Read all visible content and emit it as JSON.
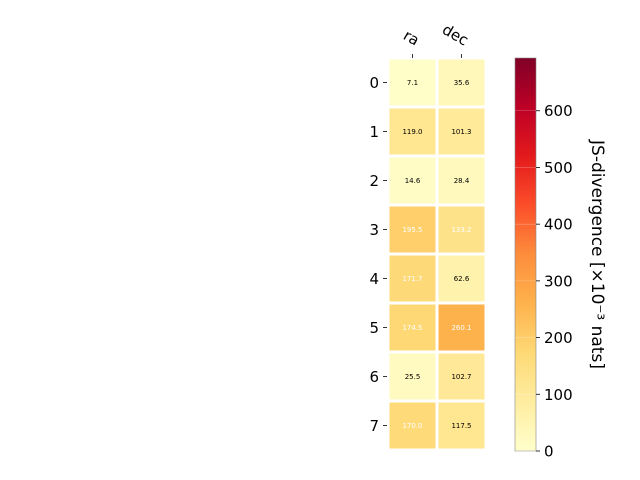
{
  "chart_data": {
    "type": "heatmap",
    "columns": [
      "ra",
      "dec"
    ],
    "rows": [
      "0",
      "1",
      "2",
      "3",
      "4",
      "5",
      "6",
      "7"
    ],
    "values": [
      [
        7.1,
        35.6
      ],
      [
        119.0,
        101.3
      ],
      [
        14.6,
        28.4
      ],
      [
        195.5,
        133.2
      ],
      [
        171.7,
        62.6
      ],
      [
        174.5,
        260.1
      ],
      [
        25.5,
        102.7
      ],
      [
        170.0,
        117.5
      ]
    ],
    "cell_labels": [
      [
        "7.1",
        "35.6"
      ],
      [
        "119.0",
        "101.3"
      ],
      [
        "14.6",
        "28.4"
      ],
      [
        "195.5",
        "133.2"
      ],
      [
        "171.7",
        "62.6"
      ],
      [
        "174.5",
        "260.1"
      ],
      [
        "25.5",
        "102.7"
      ],
      [
        "170.0",
        "117.5"
      ]
    ],
    "colorbar": {
      "label": "JS-divergence [×10⁻³ nats]",
      "min": 0,
      "max": 693,
      "ticks": [
        0,
        100,
        200,
        300,
        400,
        500,
        600
      ],
      "tick_labels": [
        "0",
        "100",
        "200",
        "300",
        "400",
        "500",
        "600"
      ],
      "colormap": "YlOrRd"
    }
  }
}
